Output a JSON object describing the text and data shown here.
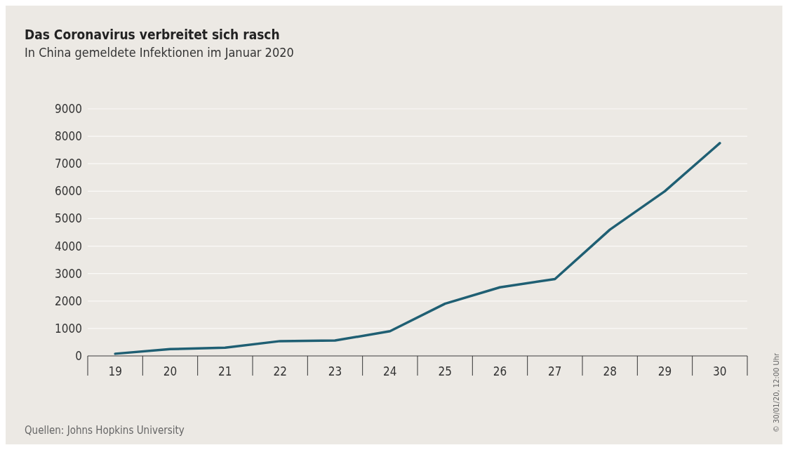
{
  "chart_data": {
    "type": "line",
    "title": "Das Coronavirus verbreitet sich rasch",
    "subtitle": "In China gemeldete Infektionen im Januar 2020",
    "categories": [
      "19",
      "20",
      "21",
      "22",
      "23",
      "24",
      "25",
      "26",
      "27",
      "28",
      "29",
      "30"
    ],
    "series": [
      {
        "color": "#1f5f73",
        "values": [
          80,
          250,
          300,
          540,
          560,
          900,
          1900,
          2500,
          2800,
          4600,
          6000,
          7750
        ]
      }
    ],
    "ylim": [
      0,
      9000
    ],
    "yticks": [
      0,
      1000,
      2000,
      3000,
      4000,
      5000,
      6000,
      7000,
      8000,
      9000
    ],
    "grid": "y",
    "marker": "none",
    "line_style": "solid",
    "annotations": [
      "Quellen: Johns Hopkins University",
      "© 30/01/20, 12:00 Uhr"
    ]
  }
}
